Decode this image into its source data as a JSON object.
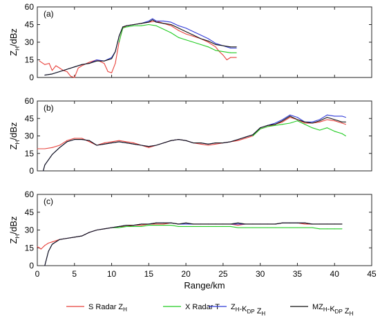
{
  "chart_data": {
    "type": "line",
    "xlabel": "Range/km",
    "x_ticks": [
      0,
      5,
      10,
      15,
      20,
      25,
      30,
      35,
      40,
      45
    ],
    "xlim": [
      0,
      45
    ],
    "legend_position": "bottom",
    "colors": {
      "S": "#e8403a",
      "X": "#22cc22",
      "ZK": "#2f3ad8",
      "MZK": "#111111"
    },
    "legend": [
      {
        "key": "S",
        "base": "S Radar Z",
        "sub": "H",
        "parts": []
      },
      {
        "key": "X",
        "base": "X Radar T",
        "sub": "",
        "parts": []
      },
      {
        "key": "ZK",
        "base": "",
        "sub": "",
        "parts": [
          [
            "Z",
            "H"
          ],
          [
            "-K",
            "DP"
          ],
          [
            " Z",
            "H"
          ]
        ]
      },
      {
        "key": "MZK",
        "base": "",
        "sub": "",
        "parts": [
          [
            "MZ",
            "H"
          ],
          [
            "-K",
            "DP"
          ],
          [
            " Z",
            "H"
          ]
        ]
      }
    ],
    "panels": [
      {
        "label": "(a)",
        "ylabel_base": "Z",
        "ylabel_sub": "H",
        "ylabel_unit": "/dBz",
        "ylim": [
          0,
          60
        ],
        "y_ticks": [
          0,
          15,
          30,
          45,
          60
        ],
        "series": [
          {
            "key": "S",
            "x": [
              0.3,
              1,
              1.6,
              2,
              2.5,
              3,
              3.5,
              4,
              4.5,
              5,
              5.5,
              6,
              7,
              8,
              9,
              9.5,
              10,
              10.5,
              11,
              11.5,
              12,
              13,
              14,
              15,
              16,
              17,
              18,
              19,
              20,
              21,
              22,
              23,
              24,
              24.5,
              25,
              25.5,
              26,
              26.8
            ],
            "y": [
              14,
              11,
              12,
              6,
              10,
              8,
              6,
              5,
              1,
              0,
              8,
              10,
              13,
              15,
              12,
              5,
              4,
              12,
              30,
              42,
              44,
              45,
              46,
              47,
              48,
              46,
              44,
              40,
              37,
              35,
              33,
              30,
              26,
              22,
              19,
              15,
              17,
              17
            ]
          },
          {
            "key": "X",
            "x": [
              11,
              11.5,
              12,
              13,
              14,
              15,
              16,
              17,
              18,
              19,
              20,
              21,
              22,
              23,
              24,
              25,
              26,
              26.8
            ],
            "y": [
              30,
              42,
              43,
              44,
              44,
              45,
              44,
              41,
              38,
              34,
              32,
              30,
              28,
              26,
              23,
              22,
              21,
              21
            ]
          },
          {
            "key": "ZK",
            "x": [
              1,
              2,
              3,
              4,
              5,
              6,
              7,
              8,
              9,
              10,
              10.5,
              11,
              11.5,
              12,
              13,
              14,
              15,
              15.5,
              16,
              17,
              18,
              19,
              20,
              21,
              22,
              23,
              24,
              25,
              26,
              26.8
            ],
            "y": [
              2,
              3,
              5,
              7,
              9,
              11,
              12,
              15,
              14,
              17,
              22,
              35,
              43,
              44,
              45,
              46,
              48,
              50,
              48,
              48,
              47,
              44,
              42,
              39,
              36,
              33,
              29,
              27,
              25,
              25
            ]
          },
          {
            "key": "MZK",
            "x": [
              1,
              2,
              3,
              4,
              5,
              6,
              7,
              8,
              9,
              10,
              10.5,
              11,
              11.5,
              12,
              13,
              14,
              15,
              15.5,
              16,
              17,
              18,
              19,
              20,
              21,
              22,
              23,
              24,
              25,
              26,
              26.8
            ],
            "y": [
              2,
              3,
              5,
              7,
              9,
              11,
              12,
              14,
              14,
              16,
              22,
              35,
              43,
              44,
              45,
              46,
              47,
              49,
              47,
              46,
              45,
              42,
              39,
              36,
              33,
              31,
              28,
              27,
              26,
              26
            ]
          }
        ]
      },
      {
        "label": "(b)",
        "ylabel_base": "Z",
        "ylabel_sub": "H",
        "ylabel_unit": "/dBz",
        "ylim": [
          0,
          60
        ],
        "y_ticks": [
          0,
          15,
          30,
          45,
          60
        ],
        "series": [
          {
            "key": "S",
            "x": [
              0,
              1,
              2,
              3,
              4,
              5,
              6,
              7,
              8,
              9,
              10,
              11,
              12,
              13,
              14,
              15,
              16,
              17,
              18,
              19,
              20,
              21,
              22,
              23,
              24,
              25,
              26,
              27,
              28,
              29,
              30,
              31,
              32,
              33,
              34,
              35,
              36,
              37,
              38,
              39,
              40,
              41,
              41.5
            ],
            "y": [
              19,
              19,
              20,
              22,
              26,
              28,
              28,
              25,
              22,
              24,
              25,
              26,
              25,
              24,
              22,
              20,
              22,
              24,
              26,
              27,
              26,
              24,
              23,
              22,
              23,
              24,
              25,
              26,
              28,
              30,
              36,
              38,
              40,
              42,
              46,
              44,
              41,
              41,
              42,
              44,
              43,
              41,
              40
            ]
          },
          {
            "key": "X",
            "x": [
              29,
              30,
              31,
              32,
              33,
              34,
              35,
              36,
              37,
              38,
              39,
              40,
              41,
              41.5
            ],
            "y": [
              30,
              36,
              38,
              39,
              40,
              41,
              43,
              40,
              37,
              35,
              37,
              34,
              32,
              30
            ]
          },
          {
            "key": "ZK",
            "x": [
              0.8,
              1,
              2,
              3,
              4,
              5,
              6,
              7,
              8,
              9,
              10,
              11,
              12,
              13,
              14,
              15,
              16,
              17,
              18,
              19,
              20,
              21,
              22,
              23,
              24,
              25,
              26,
              27,
              28,
              29,
              30,
              31,
              32,
              33,
              34,
              35,
              36,
              37,
              38,
              39,
              40,
              41,
              41.5
            ],
            "y": [
              0,
              5,
              14,
              20,
              25,
              27,
              27,
              26,
              22,
              23,
              24,
              25,
              24,
              23,
              22,
              21,
              22,
              24,
              26,
              27,
              26,
              24,
              24,
              23,
              24,
              24,
              25,
              27,
              29,
              31,
              37,
              39,
              41,
              44,
              48,
              46,
              42,
              42,
              44,
              48,
              47,
              47,
              46
            ]
          },
          {
            "key": "MZK",
            "x": [
              0.8,
              1,
              2,
              3,
              4,
              5,
              6,
              7,
              8,
              9,
              10,
              11,
              12,
              13,
              14,
              15,
              16,
              17,
              18,
              19,
              20,
              21,
              22,
              23,
              24,
              25,
              26,
              27,
              28,
              29,
              30,
              31,
              32,
              33,
              34,
              35,
              36,
              37,
              38,
              39,
              40,
              41,
              41.5
            ],
            "y": [
              0,
              5,
              14,
              20,
              25,
              27,
              27,
              26,
              22,
              23,
              24,
              25,
              24,
              23,
              22,
              21,
              22,
              24,
              26,
              27,
              26,
              24,
              24,
              23,
              24,
              24,
              25,
              27,
              29,
              31,
              37,
              39,
              40,
              43,
              47,
              44,
              42,
              41,
              43,
              46,
              44,
              42,
              42
            ]
          }
        ]
      },
      {
        "label": "(c)",
        "ylabel_base": "Z",
        "ylabel_sub": "H",
        "ylabel_unit": "/dBz",
        "ylim": [
          0,
          60
        ],
        "y_ticks": [
          0,
          15,
          30,
          45,
          60
        ],
        "series": [
          {
            "key": "S",
            "x": [
              0,
              0.5,
              1,
              1.5,
              2,
              3,
              4,
              5,
              6,
              7,
              8,
              9,
              10,
              11,
              12,
              13,
              14,
              15,
              16,
              17,
              18,
              19,
              20,
              21,
              22,
              23,
              24,
              25,
              26,
              27,
              28,
              29,
              30,
              31,
              32,
              33,
              34,
              35,
              36,
              37,
              38,
              39,
              40,
              41
            ],
            "y": [
              16,
              14,
              17,
              19,
              20,
              22,
              23,
              24,
              25,
              28,
              30,
              31,
              32,
              33,
              33,
              34,
              34,
              35,
              35,
              35,
              36,
              35,
              35,
              35,
              35,
              35,
              35,
              35,
              35,
              34,
              35,
              35,
              35,
              35,
              35,
              36,
              36,
              36,
              35,
              35,
              35,
              35,
              35,
              35
            ]
          },
          {
            "key": "X",
            "x": [
              10,
              11,
              12,
              13,
              14,
              15,
              16,
              17,
              18,
              19,
              20,
              21,
              22,
              23,
              24,
              25,
              26,
              27,
              28,
              29,
              30,
              31,
              32,
              33,
              34,
              35,
              36,
              37,
              38,
              39,
              40,
              41
            ],
            "y": [
              32,
              32,
              33,
              33,
              33,
              34,
              34,
              34,
              34,
              33,
              33,
              33,
              33,
              33,
              33,
              33,
              33,
              32,
              32,
              32,
              32,
              32,
              32,
              32,
              32,
              32,
              32,
              32,
              31,
              31,
              31,
              31
            ]
          },
          {
            "key": "ZK",
            "x": [
              1,
              1.5,
              2,
              3,
              4,
              5,
              6,
              7,
              8,
              9,
              10,
              11,
              12,
              13,
              14,
              15,
              16,
              17,
              18,
              19,
              20,
              21,
              22,
              23,
              24,
              25,
              26,
              27,
              28,
              29,
              30,
              31,
              32,
              33,
              34,
              35,
              36,
              37,
              38,
              39,
              40,
              41
            ],
            "y": [
              0,
              12,
              18,
              22,
              23,
              24,
              25,
              28,
              30,
              31,
              32,
              33,
              34,
              34,
              35,
              35,
              36,
              36,
              36,
              35,
              35,
              35,
              35,
              35,
              35,
              35,
              35,
              35,
              35,
              35,
              35,
              35,
              35,
              36,
              36,
              36,
              36,
              35,
              35,
              35,
              35,
              35
            ]
          },
          {
            "key": "MZK",
            "x": [
              1,
              1.5,
              2,
              3,
              4,
              5,
              6,
              7,
              8,
              9,
              10,
              11,
              12,
              13,
              14,
              15,
              16,
              17,
              18,
              19,
              20,
              21,
              22,
              23,
              24,
              25,
              26,
              27,
              28,
              29,
              30,
              31,
              32,
              33,
              34,
              35,
              36,
              37,
              38,
              39,
              40,
              41
            ],
            "y": [
              0,
              12,
              18,
              22,
              23,
              24,
              25,
              28,
              30,
              31,
              32,
              33,
              34,
              34,
              35,
              35,
              36,
              36,
              36,
              35,
              36,
              35,
              35,
              35,
              35,
              35,
              35,
              36,
              35,
              35,
              35,
              35,
              35,
              36,
              36,
              36,
              36,
              35,
              35,
              35,
              35,
              35
            ]
          }
        ]
      }
    ]
  }
}
